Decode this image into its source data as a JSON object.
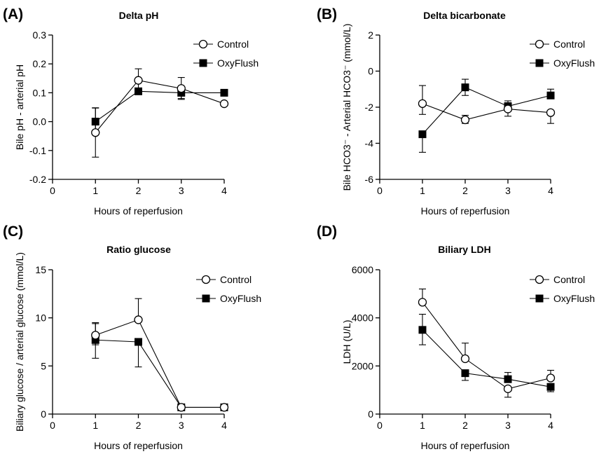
{
  "chart_data": [
    {
      "panel": "(A)",
      "type": "line",
      "title": "Delta pH",
      "xlabel": "Hours of reperfusion",
      "ylabel": "Bile pH - arterial pH",
      "xlim": [
        0,
        4
      ],
      "ylim": [
        -0.2,
        0.3
      ],
      "xticks": [
        0,
        1,
        2,
        3,
        4
      ],
      "yticks": [
        -0.2,
        -0.1,
        0.0,
        0.1,
        0.2,
        0.3
      ],
      "ytick_labels": [
        "-0.2",
        "-0.1",
        "0.0",
        "0.1",
        "0.2",
        "0.3"
      ],
      "grid": false,
      "legend_position": "top-right",
      "series": [
        {
          "name": "Control",
          "marker": "open-circle",
          "x": [
            1,
            2,
            3,
            4
          ],
          "y": [
            -0.038,
            0.143,
            0.115,
            0.062
          ],
          "err_hi": [
            0.085,
            0.04,
            0.038,
            0.0
          ],
          "err_lo": [
            0.085,
            0.04,
            0.038,
            0.0
          ]
        },
        {
          "name": "OxyFlush",
          "marker": "filled-square",
          "x": [
            1,
            2,
            3,
            4
          ],
          "y": [
            0.0,
            0.105,
            0.1,
            0.1
          ],
          "err_hi": [
            0.048,
            0.0,
            0.0,
            0.01
          ],
          "err_lo": [
            0.035,
            0.0,
            0.02,
            0.01
          ]
        }
      ]
    },
    {
      "panel": "(B)",
      "type": "line",
      "title": "Delta bicarbonate",
      "xlabel": "Hours of reperfusion",
      "ylabel": "Bile HCO3⁻ - Arterial HCO3⁻ (mmol/L)",
      "xlim": [
        0,
        4
      ],
      "ylim": [
        -6,
        2
      ],
      "xticks": [
        0,
        1,
        2,
        3,
        4
      ],
      "yticks": [
        -6,
        -4,
        -2,
        0,
        2
      ],
      "ytick_labels": [
        "-6",
        "-4",
        "-2",
        "0",
        "2"
      ],
      "grid": false,
      "legend_position": "top-right",
      "series": [
        {
          "name": "Control",
          "marker": "open-circle",
          "x": [
            1,
            2,
            3,
            4
          ],
          "y": [
            -1.8,
            -2.7,
            -2.1,
            -2.3
          ],
          "err_hi": [
            1.0,
            0.25,
            0.35,
            0.0
          ],
          "err_lo": [
            0.6,
            0.2,
            0.4,
            0.6
          ]
        },
        {
          "name": "OxyFlush",
          "marker": "filled-square",
          "x": [
            1,
            2,
            3,
            4
          ],
          "y": [
            -3.5,
            -0.9,
            -1.95,
            -1.35
          ],
          "err_hi": [
            0.0,
            0.45,
            0.3,
            0.35
          ],
          "err_lo": [
            1.0,
            0.45,
            0.0,
            0.0
          ]
        }
      ]
    },
    {
      "panel": "(C)",
      "type": "line",
      "title": "Ratio glucose",
      "xlabel": "Hours of reperfusion",
      "ylabel": "Biliary glucose / arterial glucose (mmol/L)",
      "xlim": [
        0,
        4
      ],
      "ylim": [
        0,
        15
      ],
      "xticks": [
        0,
        1,
        2,
        3,
        4
      ],
      "yticks": [
        0,
        5,
        10,
        15
      ],
      "ytick_labels": [
        "0",
        "5",
        "10",
        "15"
      ],
      "grid": false,
      "legend_position": "top-right",
      "series": [
        {
          "name": "Control",
          "marker": "open-circle",
          "x": [
            1,
            2,
            3,
            4
          ],
          "y": [
            8.2,
            9.8,
            0.7,
            0.7
          ],
          "err_hi": [
            1.3,
            2.2,
            0.0,
            0.0
          ],
          "err_lo": [
            1.0,
            0.0,
            0.0,
            0.0
          ]
        },
        {
          "name": "OxyFlush",
          "marker": "filled-square",
          "x": [
            1,
            2,
            3,
            4
          ],
          "y": [
            7.7,
            7.5,
            0.7,
            0.7
          ],
          "err_hi": [
            1.7,
            0.0,
            0.0,
            0.0
          ],
          "err_lo": [
            1.9,
            2.6,
            0.0,
            0.0
          ]
        }
      ]
    },
    {
      "panel": "(D)",
      "type": "line",
      "title": "Biliary LDH",
      "xlabel": "Hours of reperfusion",
      "ylabel": "LDH  (U/L)",
      "xlim": [
        0,
        4
      ],
      "ylim": [
        0,
        6000
      ],
      "xticks": [
        0,
        1,
        2,
        3,
        4
      ],
      "yticks": [
        0,
        2000,
        4000,
        6000
      ],
      "ytick_labels": [
        "0",
        "2000",
        "4000",
        "6000"
      ],
      "grid": false,
      "legend_position": "top-right",
      "series": [
        {
          "name": "Control",
          "marker": "open-circle",
          "x": [
            1,
            2,
            3,
            4
          ],
          "y": [
            4650,
            2300,
            1050,
            1500
          ],
          "err_hi": [
            550,
            650,
            0,
            320
          ],
          "err_lo": [
            0,
            0,
            350,
            0
          ]
        },
        {
          "name": "OxyFlush",
          "marker": "filled-square",
          "x": [
            1,
            2,
            3,
            4
          ],
          "y": [
            3500,
            1700,
            1450,
            1130
          ],
          "err_hi": [
            650,
            0,
            280,
            0
          ],
          "err_lo": [
            620,
            300,
            0,
            200
          ]
        }
      ]
    }
  ]
}
